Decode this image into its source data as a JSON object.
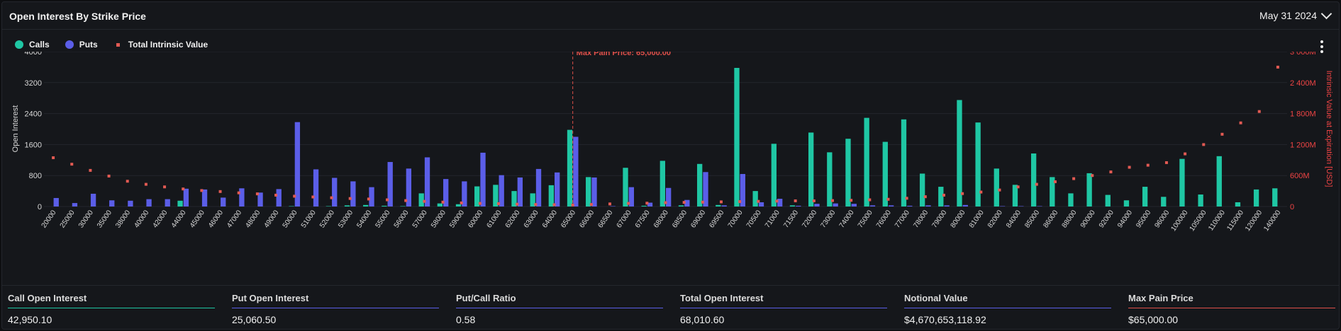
{
  "header": {
    "title": "Open Interest By Strike Price",
    "date": "May 31 2024"
  },
  "legend": [
    {
      "label": "Calls",
      "color": "#1fc7a4"
    },
    {
      "label": "Puts",
      "color": "#5b5ee8"
    },
    {
      "label": "Total Intrinsic Value",
      "color": "#e25a53"
    }
  ],
  "colors": {
    "calls": "#1fc7a4",
    "puts": "#5b5ee8",
    "intrinsic": "#e25a53",
    "maxpain": "#e0504a"
  },
  "chart_data": {
    "type": "bar",
    "ylabel": "Open Interest",
    "y2label": "Intrinsic Value at Expiration [USD]",
    "ylim": [
      0,
      4000
    ],
    "y2lim": [
      0,
      3000
    ],
    "y_ticks": [
      "0",
      "800",
      "1600",
      "2400",
      "3200",
      "4000"
    ],
    "y2_ticks": [
      "0",
      "600M",
      "1 200M",
      "1 800M",
      "2 400M",
      "3 000M"
    ],
    "max_pain_label": "Max Pain Price: 65,000.00",
    "max_pain_strike": "65000",
    "categories": [
      "20000",
      "25000",
      "30000",
      "35000",
      "38000",
      "40000",
      "42000",
      "44000",
      "45000",
      "46000",
      "47000",
      "48000",
      "49000",
      "50000",
      "51000",
      "52000",
      "53000",
      "54000",
      "55000",
      "56000",
      "57000",
      "58000",
      "59000",
      "60000",
      "61000",
      "62000",
      "63000",
      "64000",
      "65000",
      "66000",
      "66500",
      "67000",
      "67500",
      "68000",
      "68500",
      "69000",
      "69500",
      "70000",
      "70500",
      "71000",
      "71500",
      "72000",
      "73000",
      "74000",
      "75000",
      "76000",
      "77000",
      "78000",
      "79000",
      "80000",
      "81000",
      "82000",
      "84000",
      "85000",
      "86000",
      "88000",
      "90000",
      "92000",
      "94000",
      "95000",
      "96000",
      "100000",
      "105000",
      "110000",
      "115000",
      "120000",
      "140000"
    ],
    "series": [
      {
        "name": "Calls",
        "values": [
          0,
          0,
          0,
          0,
          0,
          0,
          0,
          150,
          0,
          0,
          0,
          0,
          0,
          10,
          0,
          10,
          30,
          40,
          20,
          10,
          340,
          80,
          60,
          520,
          560,
          400,
          340,
          550,
          1980,
          760,
          0,
          1000,
          20,
          1180,
          30,
          1100,
          40,
          3580,
          400,
          1620,
          30,
          1910,
          1400,
          1750,
          2290,
          1670,
          2250,
          850,
          510,
          2750,
          2170,
          980,
          560,
          1370,
          760,
          340,
          860,
          300,
          160,
          510,
          250,
          1230,
          310,
          1300,
          110,
          440,
          470
        ]
      },
      {
        "name": "Puts",
        "values": [
          220,
          90,
          330,
          160,
          150,
          190,
          190,
          460,
          440,
          230,
          470,
          360,
          450,
          2180,
          960,
          740,
          650,
          500,
          1150,
          980,
          1270,
          710,
          650,
          1390,
          810,
          750,
          970,
          880,
          1800,
          750,
          10,
          500,
          100,
          480,
          170,
          890,
          30,
          840,
          110,
          200,
          20,
          70,
          80,
          70,
          30,
          30,
          20,
          30,
          30,
          40,
          0,
          10,
          10,
          10,
          0,
          0,
          0,
          0,
          0,
          0,
          0,
          0,
          0,
          0,
          0,
          0,
          0
        ]
      },
      {
        "name": "Total Intrinsic Value",
        "values": [
          945,
          820,
          700,
          590,
          490,
          430,
          380,
          340,
          310,
          290,
          265,
          245,
          220,
          200,
          185,
          170,
          155,
          145,
          130,
          115,
          100,
          85,
          70,
          60,
          55,
          45,
          40,
          35,
          30,
          40,
          50,
          60,
          65,
          75,
          80,
          85,
          90,
          95,
          100,
          105,
          110,
          110,
          115,
          120,
          130,
          140,
          160,
          190,
          220,
          250,
          280,
          320,
          380,
          430,
          480,
          540,
          600,
          670,
          760,
          800,
          850,
          1020,
          1200,
          1400,
          1620,
          1840,
          2700
        ]
      }
    ]
  },
  "stats": [
    {
      "label": "Call Open Interest",
      "value": "42,950.10",
      "color": "#1fc7a4"
    },
    {
      "label": "Put Open Interest",
      "value": "25,060.50",
      "color": "#5b5ee8"
    },
    {
      "label": "Put/Call Ratio",
      "value": "0.58",
      "color": "#5b5ee8"
    },
    {
      "label": "Total Open Interest",
      "value": "68,010.60",
      "color": "#5b5ee8"
    },
    {
      "label": "Notional Value",
      "value": "$4,670,653,118.92",
      "color": "#5b5ee8"
    },
    {
      "label": "Max Pain Price",
      "value": "$65,000.00",
      "color": "#e0504a"
    }
  ]
}
